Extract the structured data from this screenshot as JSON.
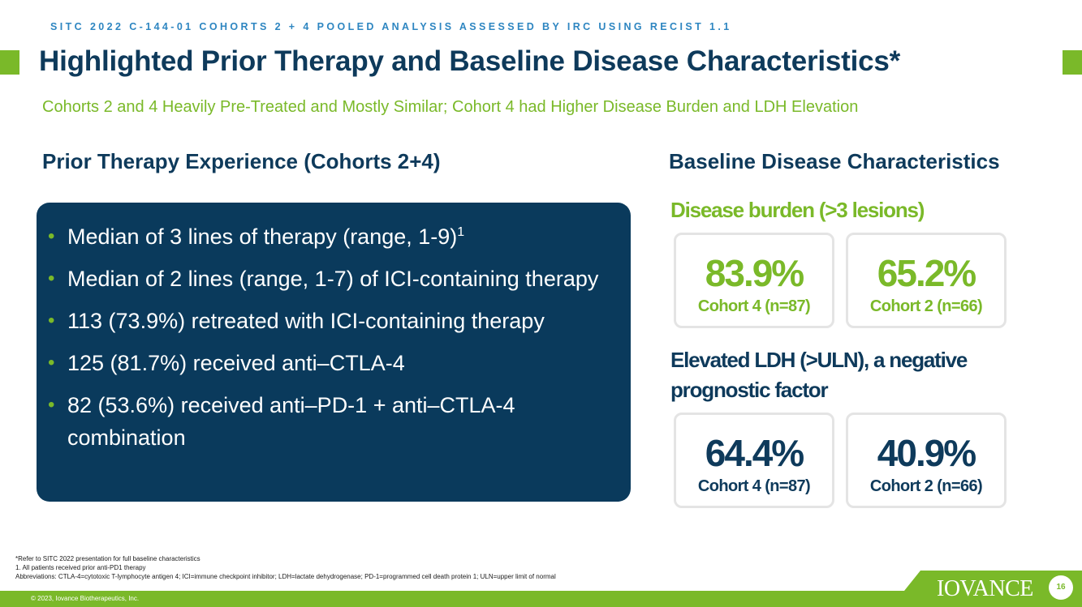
{
  "header": {
    "kicker": "SITC 2022 C-144-01 COHORTS 2 + 4 POOLED ANALYSIS ASSESSED BY IRC USING RECIST 1.1",
    "title": "Highlighted Prior Therapy and Baseline Disease Characteristics*",
    "subtitle": "Cohorts 2 and 4 Heavily Pre-Treated and Mostly Similar; Cohort 4 had Higher Disease Burden and LDH Elevation"
  },
  "prior_therapy": {
    "heading": "Prior Therapy Experience (Cohorts 2+4)",
    "bullets": [
      {
        "text": "Median of 3 lines of therapy (range, 1-9)",
        "sup": "1"
      },
      {
        "text": "Median of 2 lines (range, 1-7) of ICI-containing therapy"
      },
      {
        "text": "113 (73.9%) retreated with ICI-containing therapy"
      },
      {
        "text": "125 (81.7%) received anti–CTLA-4"
      },
      {
        "text": "82 (53.6%) received anti–PD-1 + anti–CTLA-4 combination"
      }
    ]
  },
  "baseline": {
    "heading": "Baseline Disease Characteristics",
    "disease_burden": {
      "label": "Disease burden (>3 lesions)",
      "cohort4": {
        "value": "83.9%",
        "label": "Cohort 4 (n=87)"
      },
      "cohort2": {
        "value": "65.2%",
        "label": "Cohort 2 (n=66)"
      }
    },
    "ldh": {
      "label": "Elevated LDH (>ULN), a negative prognostic factor",
      "cohort4": {
        "value": "64.4%",
        "label": "Cohort 4 (n=87)"
      },
      "cohort2": {
        "value": "40.9%",
        "label": "Cohort 2 (n=66)"
      }
    }
  },
  "footnotes": {
    "line1": "*Refer to SITC 2022 presentation for full baseline characteristics",
    "line2": "1. All patients received prior anti-PD1 therapy",
    "line3": "Abbreviations: CTLA-4=cytotoxic T-lymphocyte antigen 4; ICI=immune checkpoint inhibitor;  LDH=lactate dehydrogenase; PD-1=programmed cell death protein 1; ULN=upper limit of normal"
  },
  "footer": {
    "copyright": "© 2023, Iovance Biotherapeutics, Inc.",
    "logo": "IOVANCE",
    "page_number": "16"
  },
  "colors": {
    "navy": "#0e3a5b",
    "green": "#7ab929",
    "kicker_blue": "#2e86c1"
  }
}
